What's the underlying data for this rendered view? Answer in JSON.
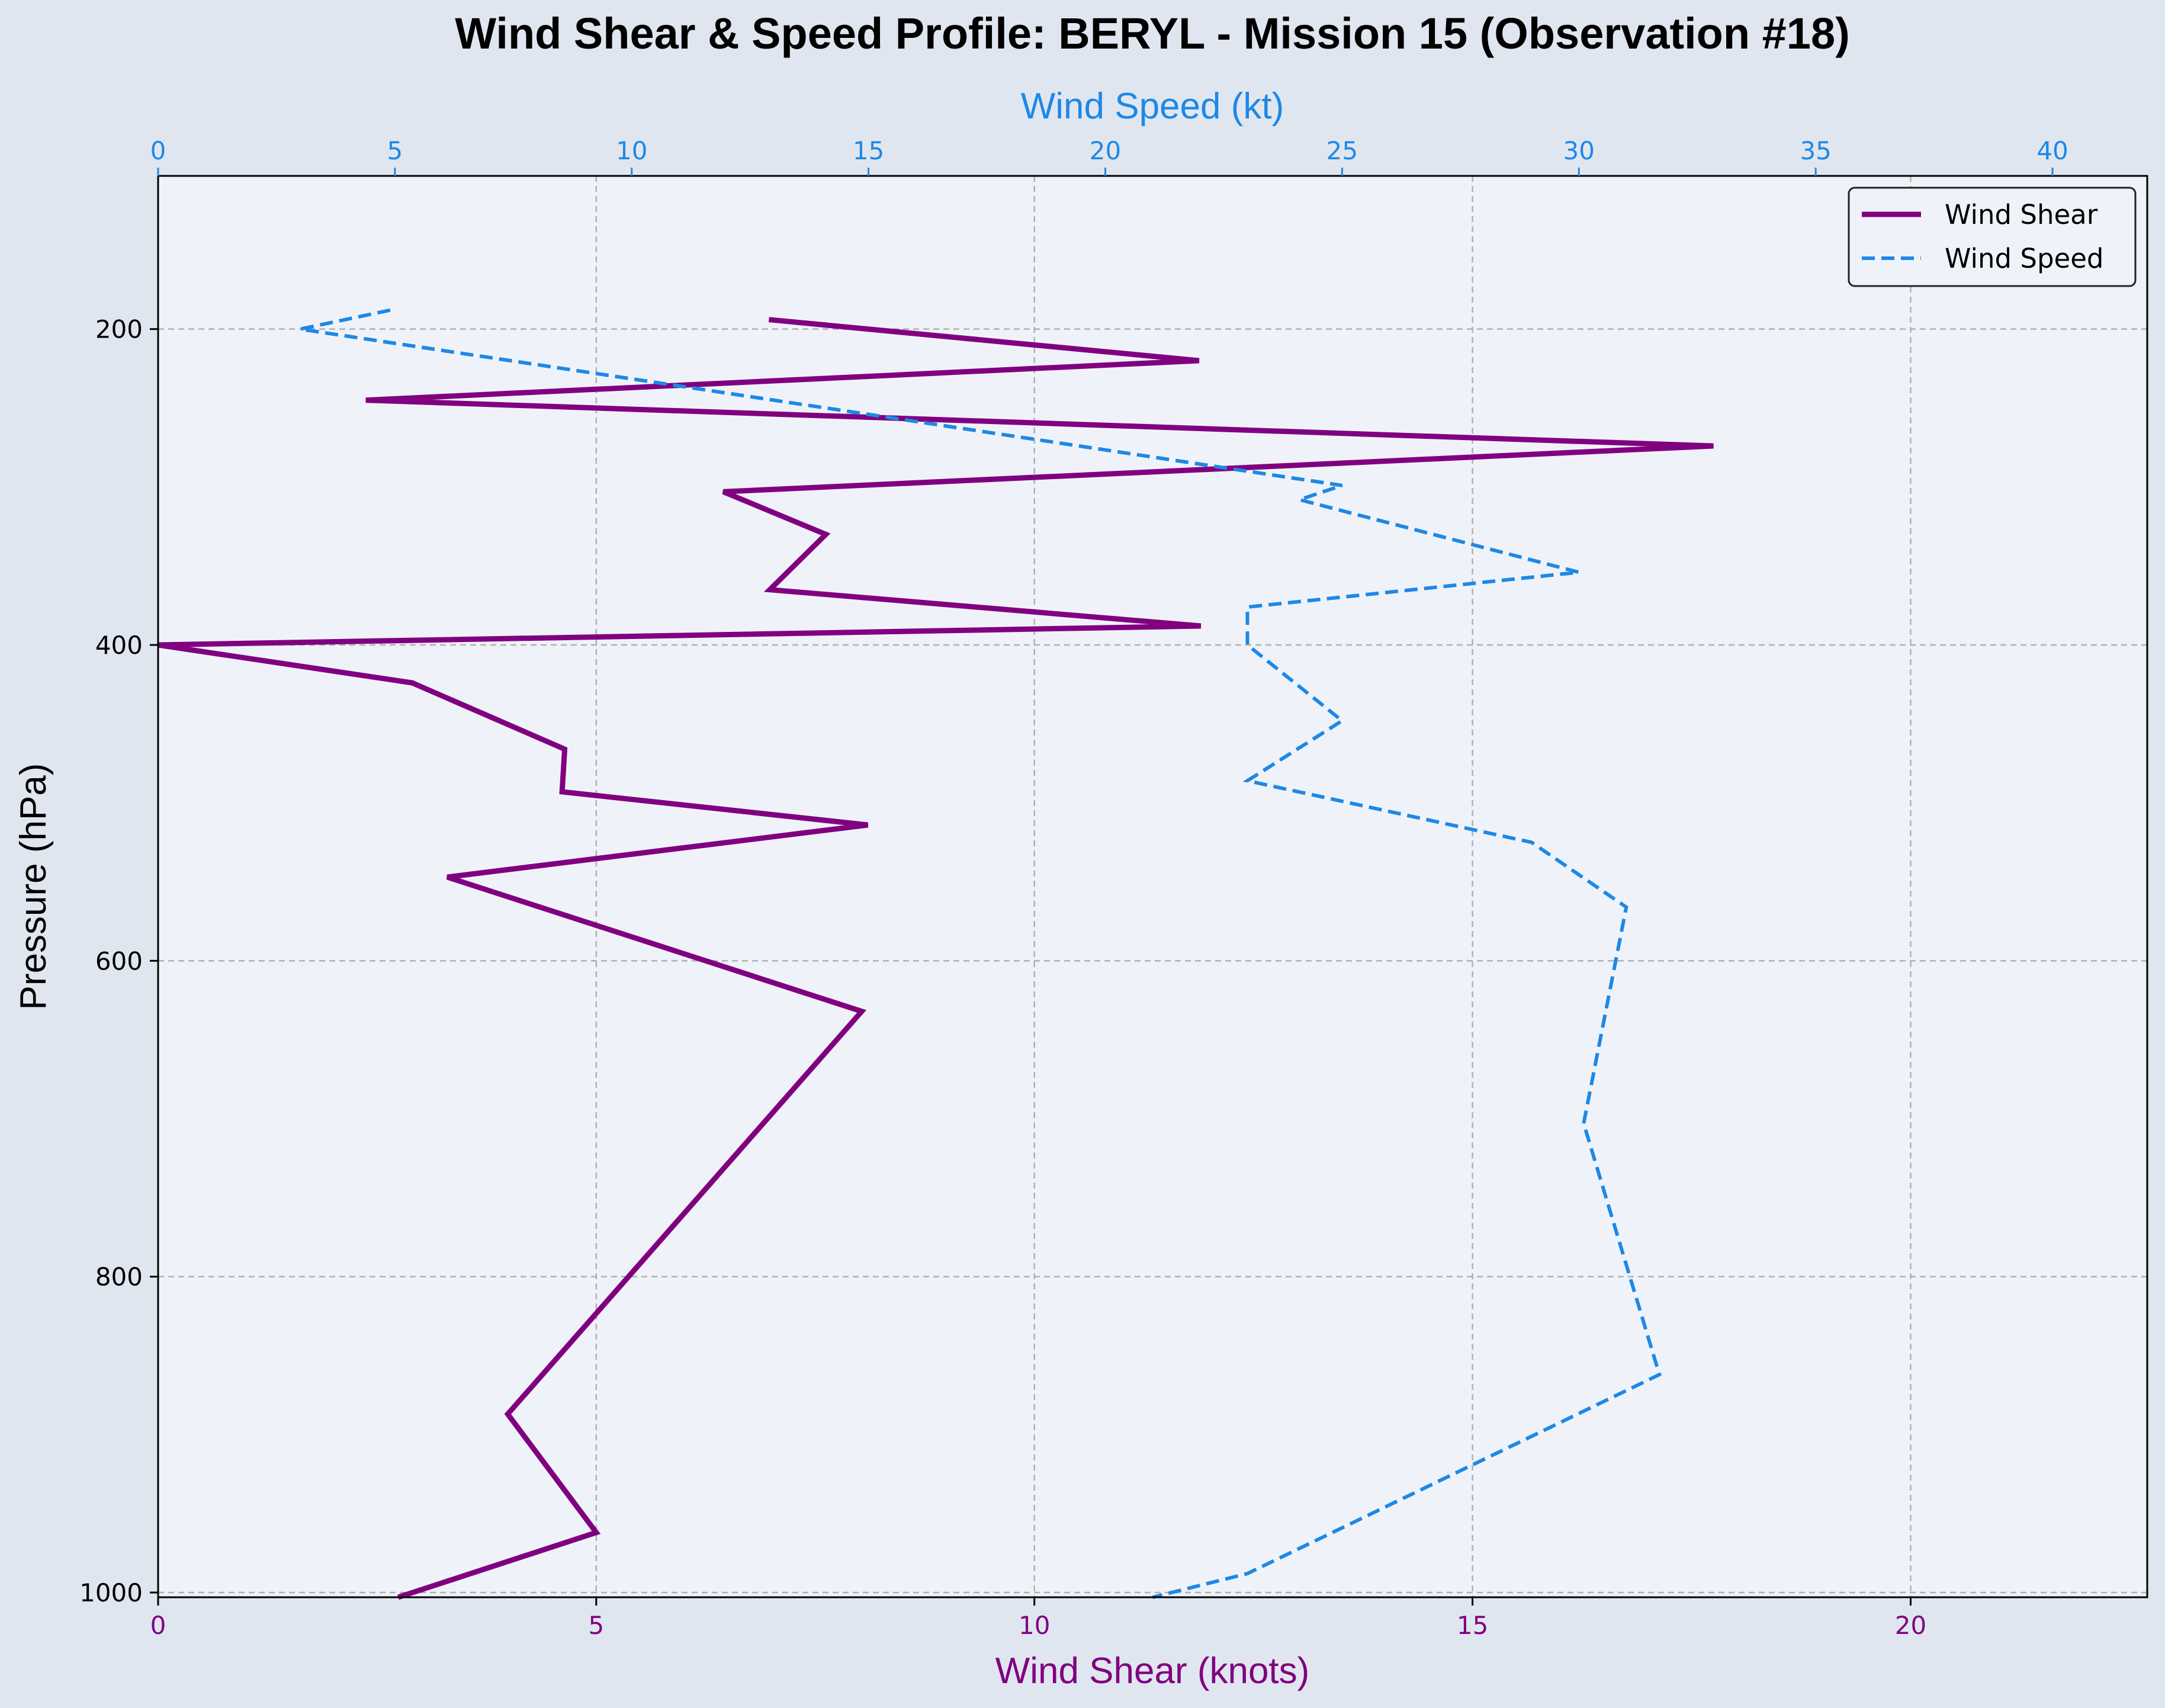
{
  "chart_data": {
    "type": "line",
    "title": "Wind Shear & Speed Profile: BERYL - Mission 15 (Observation #18)",
    "xlabel": "Wind Shear (knots)",
    "x2label": "Wind Speed (kt)",
    "ylabel": "Pressure (hPa)",
    "xlim": [
      0,
      22.7
    ],
    "x2lim": [
      0,
      42.0
    ],
    "ylim": [
      1003,
      103
    ],
    "y_inverted": true,
    "grid": true,
    "legend_position": "top-right",
    "xticks": [
      "0",
      "5",
      "10",
      "15",
      "20"
    ],
    "xtick_values": [
      0,
      5,
      10,
      15,
      20
    ],
    "x2ticks": [
      "0",
      "5",
      "10",
      "15",
      "20",
      "25",
      "30",
      "35",
      "40"
    ],
    "x2tick_values": [
      0,
      5,
      10,
      15,
      20,
      25,
      30,
      35,
      40
    ],
    "yticks": [
      "200",
      "400",
      "600",
      "800",
      "1000"
    ],
    "ytick_values": [
      200,
      400,
      600,
      800,
      1000
    ],
    "colors": {
      "shear": "#800080",
      "speed": "#1e88e5",
      "shear_axis": "#800080",
      "speed_axis": "#1e88e5"
    },
    "series": [
      {
        "name": "Wind Shear",
        "axis": "bottom",
        "style": "solid",
        "points": [
          [
            6.97,
            194
          ],
          [
            11.88,
            220
          ],
          [
            2.37,
            245
          ],
          [
            17.75,
            274
          ],
          [
            6.45,
            303
          ],
          [
            7.62,
            330
          ],
          [
            6.98,
            365
          ],
          [
            11.9,
            388
          ],
          [
            0.0,
            400
          ],
          [
            2.9,
            424
          ],
          [
            4.64,
            466
          ],
          [
            4.61,
            493
          ],
          [
            8.1,
            514
          ],
          [
            3.3,
            547
          ],
          [
            8.03,
            632
          ],
          [
            3.99,
            887
          ],
          [
            5.0,
            962
          ],
          [
            2.74,
            1003
          ]
        ]
      },
      {
        "name": "Wind Speed",
        "axis": "top",
        "style": "dashed",
        "points": [
          [
            4.9,
            188
          ],
          [
            3.0,
            200
          ],
          [
            25.0,
            299
          ],
          [
            24.1,
            308
          ],
          [
            30.0,
            354
          ],
          [
            23.0,
            376
          ],
          [
            23.0,
            400
          ],
          [
            25.0,
            448
          ],
          [
            23.0,
            486
          ],
          [
            29.0,
            525
          ],
          [
            31.0,
            566
          ],
          [
            30.1,
            703
          ],
          [
            31.7,
            862
          ],
          [
            23.0,
            988
          ],
          [
            21.0,
            1003
          ]
        ]
      }
    ]
  }
}
